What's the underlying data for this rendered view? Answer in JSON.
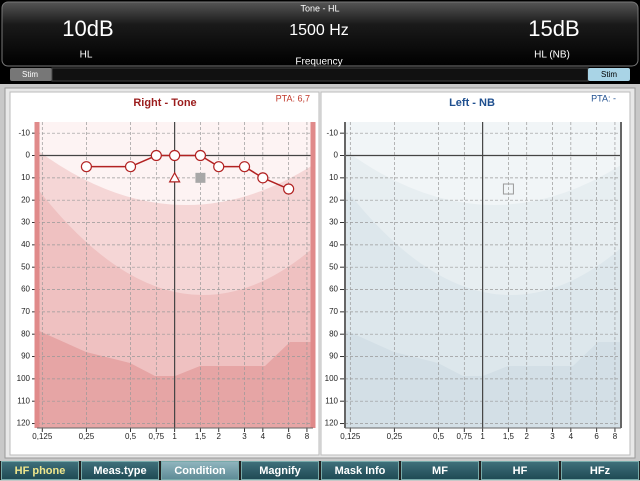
{
  "header": {
    "title": "Tone - HL",
    "left_level": "10dB",
    "left_unit": "HL",
    "frequency": "1500 Hz",
    "frequency_label": "Frequency",
    "right_level": "15dB",
    "right_unit": "HL (NB)",
    "stim_left": "Stim",
    "stim_right": "Stim"
  },
  "chart_data": [
    {
      "type": "line",
      "title": "Right - Tone",
      "title_color": "#9b1c1c",
      "pta": "PTA: 6,7",
      "pta_color": "#c0392b",
      "log_x": true,
      "invert_y": true,
      "grid": true,
      "xlim": [
        0.115,
        8.8
      ],
      "ylim": [
        -15,
        122
      ],
      "xticks": [
        {
          "value": 0.125,
          "label": "0,125"
        },
        {
          "value": 0.25,
          "label": "0,25"
        },
        {
          "value": 0.5,
          "label": "0,5"
        },
        {
          "value": 0.75,
          "label": "0,75"
        },
        1,
        {
          "value": 1.5,
          "label": "1,5"
        },
        2,
        3,
        4,
        6,
        8
      ],
      "yticks": [
        -10,
        0,
        10,
        20,
        30,
        40,
        50,
        60,
        70,
        80,
        90,
        100,
        110,
        120
      ],
      "series": [
        {
          "color": "#b22222",
          "marker": "circle",
          "line": true,
          "x": [
            0.25,
            0.5,
            0.75,
            1,
            1.5,
            2,
            3,
            4,
            6
          ],
          "values": [
            5,
            5,
            0,
            0,
            0,
            5,
            5,
            10,
            15
          ]
        },
        {
          "color": "#b22222",
          "marker": "triangle",
          "line": false,
          "x": [
            1
          ],
          "values": [
            10
          ]
        },
        {
          "color": "#a8a8a8",
          "marker": "filled-square",
          "line": false,
          "x": [
            1.5
          ],
          "values": [
            10
          ]
        }
      ]
    },
    {
      "type": "line",
      "title": "Left - NB",
      "title_color": "#1f4f8f",
      "pta": "PTA: -",
      "pta_color": "#1f4f8f",
      "log_x": true,
      "invert_y": true,
      "grid": true,
      "xlim": [
        0.115,
        8.8
      ],
      "ylim": [
        -15,
        122
      ],
      "xticks": [
        {
          "value": 0.125,
          "label": "0,125"
        },
        {
          "value": 0.25,
          "label": "0,25"
        },
        {
          "value": 0.5,
          "label": "0,5"
        },
        {
          "value": 0.75,
          "label": "0,75"
        },
        1,
        {
          "value": 1.5,
          "label": "1,5"
        },
        2,
        3,
        4,
        6,
        8
      ],
      "yticks": [
        -10,
        0,
        10,
        20,
        30,
        40,
        50,
        60,
        70,
        80,
        90,
        100,
        110,
        120
      ],
      "series": [
        {
          "color": "#999999",
          "marker": "square",
          "line": false,
          "x": [
            1.5
          ],
          "values": [
            15
          ]
        }
      ]
    }
  ],
  "buttons": [
    "HF phone",
    "Meas.type",
    "Condition",
    "Magnify",
    "Mask Info",
    "MF",
    "HF",
    "HFz"
  ]
}
